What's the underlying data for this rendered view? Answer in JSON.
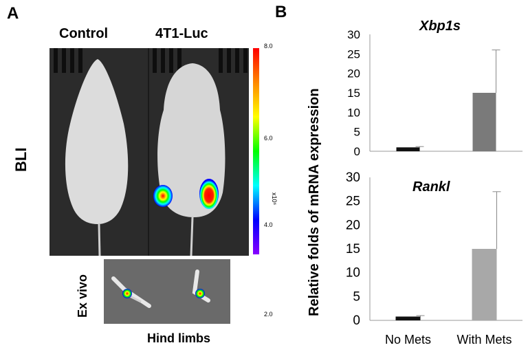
{
  "panel_a": {
    "letter": "A",
    "columns": [
      "Control",
      "4T1-Luc"
    ],
    "row_label": "BLI",
    "exvivo_label": "Ex vivo",
    "exvivo_caption": "Hind limbs",
    "colorbar": {
      "ticks": [
        "8.0",
        "6.0",
        "4.0",
        "2.0"
      ],
      "unit": "x10⁶",
      "gradient": [
        "#ff0000",
        "#ff8800",
        "#ffff00",
        "#00ff00",
        "#00ffff",
        "#0000ff",
        "#8800ff"
      ]
    }
  },
  "panel_b": {
    "letter": "B",
    "ylabel": "Relative folds of mRNA expression",
    "categories": [
      "No Mets",
      "With Mets"
    ]
  },
  "chart_data": [
    {
      "type": "bar",
      "title": "Xbp1s",
      "categories": [
        "No Mets",
        "With Mets"
      ],
      "values": [
        1,
        15
      ],
      "errors": [
        0.2,
        11
      ],
      "ylim": [
        0,
        30
      ],
      "yticks": [
        0,
        5,
        10,
        15,
        20,
        25,
        30
      ],
      "colors": [
        "#111111",
        "#7a7a7a"
      ]
    },
    {
      "type": "bar",
      "title": "Rankl",
      "categories": [
        "No Mets",
        "With Mets"
      ],
      "values": [
        0.8,
        15
      ],
      "errors": [
        0.2,
        12
      ],
      "ylim": [
        0,
        30
      ],
      "yticks": [
        0,
        5,
        10,
        15,
        20,
        25,
        30
      ],
      "colors": [
        "#111111",
        "#a8a8a8"
      ]
    }
  ]
}
